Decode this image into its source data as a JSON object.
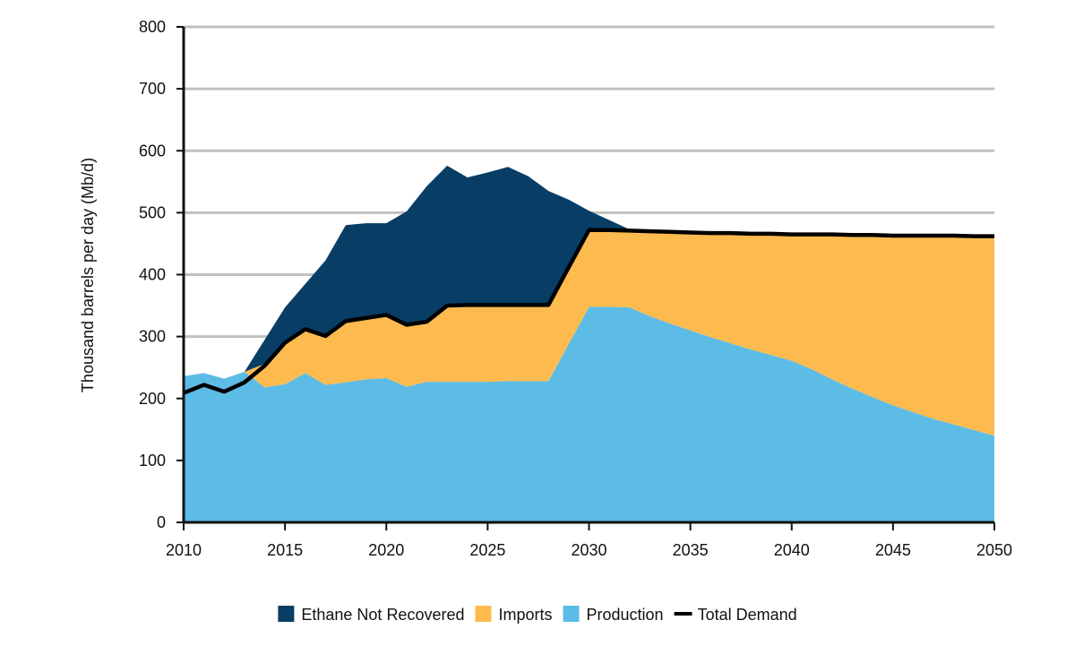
{
  "chart_data": {
    "type": "area",
    "ylabel": "Thousand barrels per day (Mb/d)",
    "xlabel": "",
    "xlim": [
      2010,
      2050
    ],
    "ylim": [
      0,
      800
    ],
    "x_ticks": [
      2010,
      2015,
      2020,
      2025,
      2030,
      2035,
      2040,
      2045,
      2050
    ],
    "y_ticks": [
      0,
      100,
      200,
      300,
      400,
      500,
      600,
      700,
      800
    ],
    "grid": "horizontal",
    "legend_position": "bottom",
    "series": [
      {
        "name": "Production",
        "kind": "area",
        "color": "#5dbce6",
        "points": [
          [
            2010,
            236
          ],
          [
            2011,
            241
          ],
          [
            2012,
            232
          ],
          [
            2013,
            243
          ],
          [
            2014,
            218
          ],
          [
            2015,
            223
          ],
          [
            2016,
            241
          ],
          [
            2017,
            222
          ],
          [
            2018,
            226
          ],
          [
            2019,
            231
          ],
          [
            2020,
            233
          ],
          [
            2021,
            219
          ],
          [
            2022,
            227
          ],
          [
            2023,
            227
          ],
          [
            2024,
            227
          ],
          [
            2025,
            227
          ],
          [
            2026,
            228
          ],
          [
            2027,
            228
          ],
          [
            2028,
            228
          ],
          [
            2029,
            288
          ],
          [
            2030,
            348
          ],
          [
            2031,
            348
          ],
          [
            2032,
            347
          ],
          [
            2033,
            333
          ],
          [
            2034,
            321
          ],
          [
            2035,
            310
          ],
          [
            2036,
            299
          ],
          [
            2037,
            289
          ],
          [
            2038,
            279
          ],
          [
            2039,
            270
          ],
          [
            2040,
            261
          ],
          [
            2041,
            247
          ],
          [
            2042,
            231
          ],
          [
            2043,
            216
          ],
          [
            2044,
            202
          ],
          [
            2045,
            189
          ],
          [
            2046,
            178
          ],
          [
            2047,
            167
          ],
          [
            2048,
            158
          ],
          [
            2049,
            149
          ],
          [
            2050,
            140
          ]
        ]
      },
      {
        "name": "Imports",
        "kind": "area",
        "color": "#fdbb4f",
        "points": [
          [
            2010,
            236
          ],
          [
            2011,
            241
          ],
          [
            2012,
            232
          ],
          [
            2013,
            243
          ],
          [
            2014,
            256
          ],
          [
            2015,
            291
          ],
          [
            2016,
            313
          ],
          [
            2017,
            302
          ],
          [
            2018,
            326
          ],
          [
            2019,
            331
          ],
          [
            2020,
            335
          ],
          [
            2021,
            319
          ],
          [
            2022,
            325
          ],
          [
            2023,
            351
          ],
          [
            2024,
            351
          ],
          [
            2025,
            351
          ],
          [
            2026,
            352
          ],
          [
            2027,
            352
          ],
          [
            2028,
            352
          ],
          [
            2029,
            412
          ],
          [
            2030,
            472
          ],
          [
            2031,
            472
          ],
          [
            2032,
            471
          ],
          [
            2033,
            470
          ],
          [
            2034,
            469
          ],
          [
            2035,
            468
          ],
          [
            2036,
            467
          ],
          [
            2037,
            467
          ],
          [
            2038,
            466
          ],
          [
            2039,
            466
          ],
          [
            2040,
            465
          ],
          [
            2041,
            465
          ],
          [
            2042,
            465
          ],
          [
            2043,
            464
          ],
          [
            2044,
            464
          ],
          [
            2045,
            463
          ],
          [
            2046,
            463
          ],
          [
            2047,
            463
          ],
          [
            2048,
            463
          ],
          [
            2049,
            462
          ],
          [
            2050,
            462
          ]
        ]
      },
      {
        "name": "Ethane Not Recovered",
        "kind": "area",
        "color": "#083e66",
        "points": [
          [
            2010,
            236
          ],
          [
            2011,
            241
          ],
          [
            2012,
            232
          ],
          [
            2013,
            243
          ],
          [
            2014,
            295
          ],
          [
            2015,
            347
          ],
          [
            2016,
            385
          ],
          [
            2017,
            423
          ],
          [
            2018,
            480
          ],
          [
            2019,
            483
          ],
          [
            2020,
            483
          ],
          [
            2021,
            502
          ],
          [
            2022,
            543
          ],
          [
            2023,
            576
          ],
          [
            2024,
            557
          ],
          [
            2025,
            565
          ],
          [
            2026,
            574
          ],
          [
            2027,
            559
          ],
          [
            2028,
            535
          ],
          [
            2029,
            521
          ],
          [
            2030,
            503
          ],
          [
            2031,
            488
          ],
          [
            2032,
            473
          ]
        ]
      },
      {
        "name": "Total Demand",
        "kind": "line",
        "color": "#000000",
        "points": [
          [
            2010,
            209
          ],
          [
            2011,
            222
          ],
          [
            2012,
            211
          ],
          [
            2013,
            226
          ],
          [
            2014,
            253
          ],
          [
            2015,
            290
          ],
          [
            2016,
            312
          ],
          [
            2017,
            301
          ],
          [
            2018,
            325
          ],
          [
            2019,
            330
          ],
          [
            2020,
            335
          ],
          [
            2021,
            319
          ],
          [
            2022,
            324
          ],
          [
            2023,
            350
          ],
          [
            2024,
            351
          ],
          [
            2025,
            351
          ],
          [
            2026,
            351
          ],
          [
            2027,
            351
          ],
          [
            2028,
            351
          ],
          [
            2029,
            412
          ],
          [
            2030,
            472
          ],
          [
            2031,
            472
          ],
          [
            2032,
            471
          ],
          [
            2033,
            470
          ],
          [
            2034,
            469
          ],
          [
            2035,
            468
          ],
          [
            2036,
            467
          ],
          [
            2037,
            467
          ],
          [
            2038,
            466
          ],
          [
            2039,
            466
          ],
          [
            2040,
            465
          ],
          [
            2041,
            465
          ],
          [
            2042,
            465
          ],
          [
            2043,
            464
          ],
          [
            2044,
            464
          ],
          [
            2045,
            463
          ],
          [
            2046,
            463
          ],
          [
            2047,
            463
          ],
          [
            2048,
            463
          ],
          [
            2049,
            462
          ],
          [
            2050,
            462
          ]
        ]
      }
    ],
    "legend": [
      {
        "label": "Ethane Not Recovered",
        "color": "#083e66",
        "marker": "square"
      },
      {
        "label": "Imports",
        "color": "#fdbb4f",
        "marker": "square"
      },
      {
        "label": "Production",
        "color": "#5dbce6",
        "marker": "square"
      },
      {
        "label": "Total Demand",
        "color": "#000000",
        "marker": "line"
      }
    ]
  },
  "colors": {
    "gridline": "#c0c0c0",
    "axis": "#111111"
  }
}
